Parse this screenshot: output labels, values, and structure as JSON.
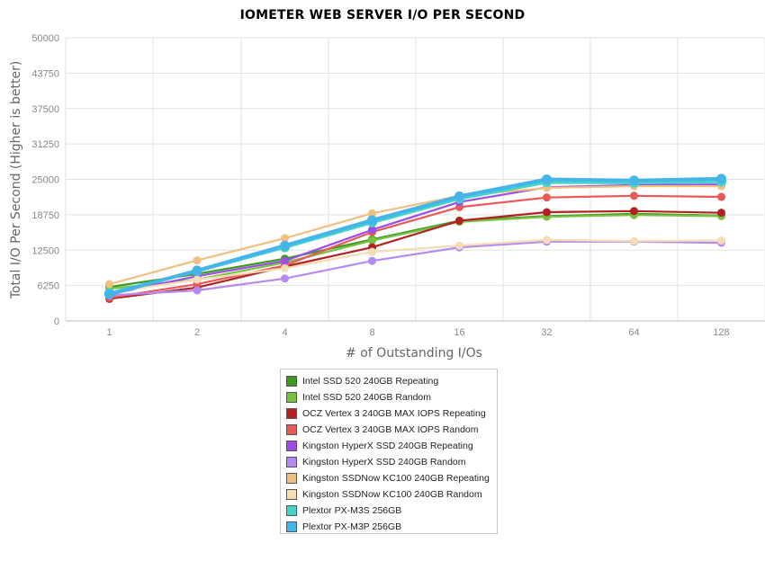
{
  "chart_data": {
    "type": "line",
    "title": "IOMETER WEB SERVER I/O PER SECOND",
    "xlabel": "# of Outstanding I/Os",
    "ylabel": "Total I/O Per Second (Higher is better)",
    "categories": [
      "1",
      "2",
      "4",
      "8",
      "16",
      "32",
      "64",
      "128"
    ],
    "yticks": [
      "0",
      "6250",
      "12500",
      "18750",
      "25000",
      "31250",
      "37500",
      "43750",
      "50000"
    ],
    "ylim": [
      0,
      50000
    ],
    "grid": true,
    "legend_position": "bottom",
    "series": [
      {
        "name": "Intel SSD 520 240GB Repeating",
        "color": "#3d9a1f",
        "values": [
          6000,
          8300,
          11000,
          14400,
          17700,
          18500,
          18900,
          18600
        ]
      },
      {
        "name": "Intel SSD 520 240GB Random",
        "color": "#77c240",
        "values": [
          5700,
          7300,
          10300,
          14200,
          17500,
          18400,
          18700,
          18500
        ]
      },
      {
        "name": "OCZ Vertex 3 240GB MAX IOPS Repeating",
        "color": "#b22222",
        "values": [
          3900,
          5900,
          9600,
          13000,
          17700,
          19200,
          19400,
          19100
        ]
      },
      {
        "name": "OCZ Vertex 3 240GB MAX IOPS Random",
        "color": "#e85a5a",
        "values": [
          4100,
          6500,
          9800,
          15700,
          20100,
          21800,
          22100,
          21900
        ]
      },
      {
        "name": "Kingston HyperX SSD 240GB Repeating",
        "color": "#9b4de8",
        "values": [
          4700,
          7900,
          10600,
          16100,
          21000,
          23600,
          24000,
          24100
        ]
      },
      {
        "name": "Kingston HyperX SSD 240GB Random",
        "color": "#b58af0",
        "values": [
          4500,
          5400,
          7500,
          10600,
          13000,
          14000,
          14000,
          13800
        ]
      },
      {
        "name": "Kingston SSDNow KC100 240GB Repeating",
        "color": "#f0c080",
        "values": [
          6500,
          10700,
          14600,
          19000,
          22100,
          23500,
          23800,
          23800
        ]
      },
      {
        "name": "Kingston SSDNow KC100 240GB Random",
        "color": "#f5dcb5",
        "values": [
          5000,
          7300,
          9300,
          12200,
          13300,
          14300,
          14100,
          14200
        ]
      },
      {
        "name": "Plextor PX-M3S 256GB",
        "color": "#45d4c8",
        "values": [
          4900,
          8800,
          13000,
          17400,
          21600,
          24500,
          24400,
          24600
        ]
      },
      {
        "name": "Plextor PX-M3P 256GB",
        "color": "#45b4e8",
        "values": [
          4700,
          8900,
          13300,
          17800,
          22000,
          25000,
          24800,
          25100
        ]
      }
    ]
  }
}
